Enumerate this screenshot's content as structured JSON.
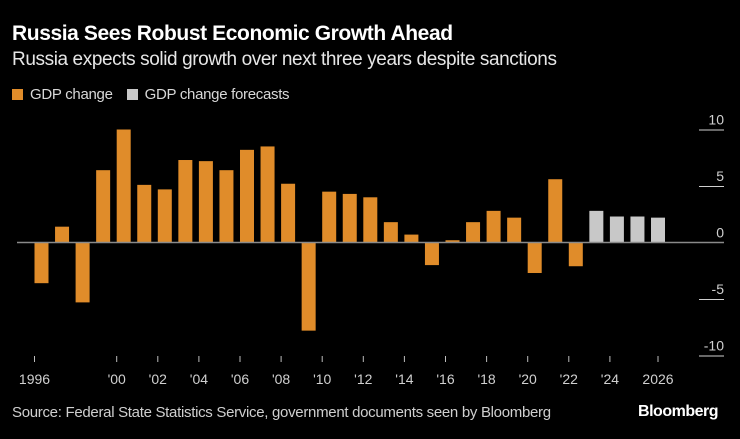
{
  "header": {
    "title": "Russia Sees Robust Economic Growth Ahead",
    "subtitle": "Russia expects solid growth over next three years despite sanctions"
  },
  "legend": [
    {
      "label": "GDP change",
      "color": "#e08c2a"
    },
    {
      "label": "GDP change forecasts",
      "color": "#c8c8c8"
    }
  ],
  "footer": {
    "source": "Source: Federal State Statistics Service, government documents seen by Bloomberg",
    "brand": "Bloomberg"
  },
  "chart_data": {
    "type": "bar",
    "title": "Russia Sees Robust Economic Growth Ahead",
    "subtitle": "Russia expects solid growth over next three years despite sanctions",
    "xlabel": "",
    "ylabel": "",
    "ylim": [
      -10,
      10
    ],
    "yticks": [
      10,
      5,
      0,
      -5,
      -10
    ],
    "ytick_labels": [
      "10",
      "5",
      "0",
      "-5",
      "-10"
    ],
    "y_axis_position": "right",
    "grid": false,
    "legend_position": "top-left",
    "xtick_labels": [
      {
        "year": 1996,
        "label": "1996"
      },
      {
        "year": 2000,
        "label": "'00"
      },
      {
        "year": 2002,
        "label": "'02"
      },
      {
        "year": 2004,
        "label": "'04"
      },
      {
        "year": 2006,
        "label": "'06"
      },
      {
        "year": 2008,
        "label": "'08"
      },
      {
        "year": 2010,
        "label": "'10"
      },
      {
        "year": 2012,
        "label": "'12"
      },
      {
        "year": 2014,
        "label": "'14"
      },
      {
        "year": 2016,
        "label": "'16"
      },
      {
        "year": 2018,
        "label": "'18"
      },
      {
        "year": 2020,
        "label": "'20"
      },
      {
        "year": 2022,
        "label": "'22"
      },
      {
        "year": 2024,
        "label": "'24"
      },
      {
        "year": 2026,
        "label": "2026"
      }
    ],
    "series": [
      {
        "name": "GDP change",
        "color": "#e08c2a",
        "x": [
          1996,
          1997,
          1998,
          1999,
          2000,
          2001,
          2002,
          2003,
          2004,
          2005,
          2006,
          2007,
          2008,
          2009,
          2010,
          2011,
          2012,
          2013,
          2014,
          2015,
          2016,
          2017,
          2018,
          2019,
          2020,
          2021,
          2022
        ],
        "values": [
          -3.6,
          1.4,
          -5.3,
          6.4,
          10.0,
          5.1,
          4.7,
          7.3,
          7.2,
          6.4,
          8.2,
          8.5,
          5.2,
          -7.8,
          4.5,
          4.3,
          4.0,
          1.8,
          0.7,
          -2.0,
          0.2,
          1.8,
          2.8,
          2.2,
          -2.7,
          5.6,
          -2.1
        ]
      },
      {
        "name": "GDP change forecasts",
        "color": "#c8c8c8",
        "x": [
          2023,
          2024,
          2025,
          2026
        ],
        "values": [
          2.8,
          2.3,
          2.3,
          2.2
        ]
      }
    ]
  }
}
